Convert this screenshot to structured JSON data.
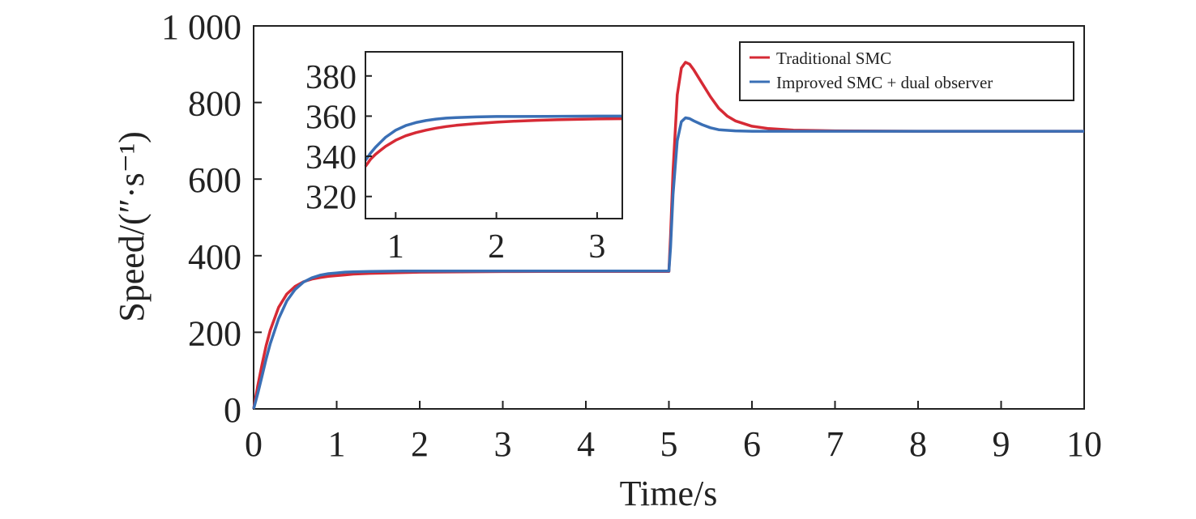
{
  "chart_data": {
    "type": "line",
    "xlabel": "Time/s",
    "ylabel": "Speed/(″·s⁻¹)",
    "xlim": [
      0,
      10
    ],
    "ylim": [
      0,
      1000
    ],
    "xticks": [
      0,
      1,
      2,
      3,
      4,
      5,
      6,
      7,
      8,
      9,
      10
    ],
    "yticks": [
      0,
      200,
      400,
      600,
      800,
      1000
    ],
    "ytick_labels": [
      "0",
      "200",
      "400",
      "600",
      "800",
      "1 000"
    ],
    "grid": false,
    "legend": "top-right",
    "series": [
      {
        "name": "Traditional SMC",
        "color": "#d62a35",
        "x": [
          0,
          0.05,
          0.1,
          0.15,
          0.2,
          0.3,
          0.4,
          0.5,
          0.6,
          0.7,
          0.8,
          0.9,
          1.0,
          1.1,
          1.2,
          1.4,
          1.6,
          1.8,
          2.0,
          2.5,
          3.0,
          3.5,
          4.0,
          4.5,
          5.0,
          5.02,
          5.05,
          5.1,
          5.15,
          5.2,
          5.25,
          5.3,
          5.4,
          5.5,
          5.6,
          5.7,
          5.8,
          6.0,
          6.2,
          6.5,
          7.0,
          8.0,
          9.0,
          10.0
        ],
        "y": [
          0,
          60,
          115,
          165,
          205,
          265,
          300,
          320,
          332,
          339,
          343,
          346,
          348,
          350,
          352,
          354,
          355,
          356,
          357,
          358,
          358.5,
          359,
          359,
          359,
          359,
          450,
          620,
          820,
          890,
          905,
          900,
          885,
          850,
          815,
          785,
          765,
          752,
          738,
          732,
          728,
          726,
          725,
          725,
          725
        ]
      },
      {
        "name": "Improved SMC + dual observer",
        "color": "#3a6fb5",
        "x": [
          0,
          0.05,
          0.1,
          0.15,
          0.2,
          0.3,
          0.4,
          0.5,
          0.6,
          0.7,
          0.8,
          0.9,
          1.0,
          1.1,
          1.2,
          1.4,
          1.6,
          1.8,
          2.0,
          2.5,
          3.0,
          3.5,
          4.0,
          4.5,
          5.0,
          5.02,
          5.05,
          5.1,
          5.15,
          5.2,
          5.25,
          5.3,
          5.4,
          5.5,
          5.6,
          5.8,
          6.0,
          6.5,
          7.0,
          8.0,
          9.0,
          10.0
        ],
        "y": [
          0,
          40,
          85,
          130,
          170,
          235,
          282,
          312,
          331,
          342,
          349,
          353,
          355,
          357,
          358,
          359,
          359.5,
          360,
          360,
          360,
          360,
          360,
          360,
          360,
          360,
          420,
          560,
          700,
          750,
          760,
          758,
          752,
          742,
          734,
          729,
          726,
          725,
          725,
          725,
          725,
          725,
          725
        ]
      }
    ],
    "inset": {
      "xlim": [
        0.7,
        3.25
      ],
      "ylim": [
        309,
        392
      ],
      "xticks": [
        1,
        2,
        3
      ],
      "yticks": [
        320,
        340,
        360,
        380
      ],
      "series": [
        {
          "name": "Traditional SMC",
          "color": "#d62a35",
          "x": [
            0.7,
            0.75,
            0.8,
            0.85,
            0.9,
            1.0,
            1.1,
            1.2,
            1.3,
            1.4,
            1.5,
            1.6,
            1.8,
            2.0,
            2.2,
            2.4,
            2.6,
            2.8,
            3.0,
            3.25
          ],
          "y": [
            335,
            338.5,
            341,
            343,
            345,
            348,
            350.2,
            351.8,
            353,
            354,
            354.8,
            355.4,
            356.3,
            357,
            357.5,
            357.9,
            358.2,
            358.4,
            358.6,
            358.7
          ]
        },
        {
          "name": "Improved SMC + dual observer",
          "color": "#3a6fb5",
          "x": [
            0.7,
            0.75,
            0.8,
            0.85,
            0.9,
            1.0,
            1.1,
            1.2,
            1.3,
            1.4,
            1.5,
            1.6,
            1.8,
            2.0,
            2.5,
            3.0,
            3.25
          ],
          "y": [
            338,
            341.5,
            344.5,
            347,
            349.5,
            353,
            355.3,
            356.8,
            357.8,
            358.5,
            359,
            359.3,
            359.6,
            359.8,
            359.9,
            360,
            360
          ]
        }
      ]
    }
  }
}
